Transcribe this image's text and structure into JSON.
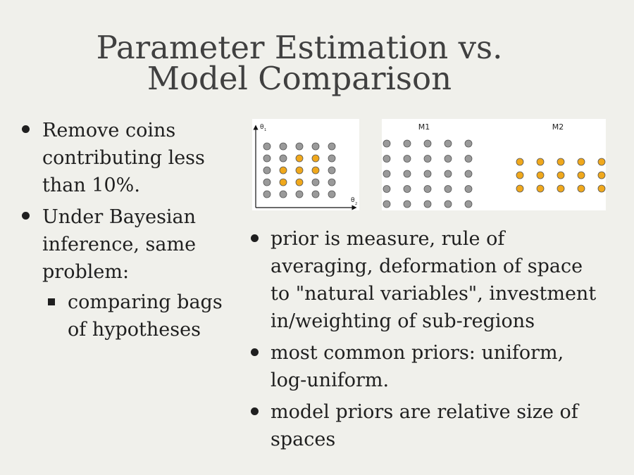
{
  "title": {
    "line1": "Parameter Estimation vs.",
    "line2": "Model Comparison"
  },
  "left_bullets": [
    {
      "text": "Remove coins contributing less than 10%."
    },
    {
      "text": "Under Bayesian inference, same problem:",
      "sub": [
        {
          "text": "comparing bags of hypotheses"
        }
      ]
    }
  ],
  "right_bullets": [
    {
      "text": "prior is measure, rule of averaging, deformation of space to \"natural variables\", investment in/weighting of sub-regions"
    },
    {
      "text": "most common priors: uniform, log-uniform."
    },
    {
      "text": "model priors are relative size of spaces"
    }
  ],
  "figure_a": {
    "y_axis_label": "θ",
    "y_axis_sub": "1",
    "x_axis_label": "θ",
    "x_axis_sub": "2",
    "grid_rows": 5,
    "grid_cols": 5,
    "highlighted": [
      [
        1,
        2
      ],
      [
        1,
        3
      ],
      [
        2,
        1
      ],
      [
        2,
        2
      ],
      [
        2,
        3
      ],
      [
        3,
        1
      ],
      [
        3,
        2
      ]
    ]
  },
  "figure_b": {
    "model1_label": "M1",
    "model2_label": "M2",
    "model1_rows": 5,
    "model1_cols": 5,
    "model2_rows": 3,
    "model2_cols": 5
  },
  "colors": {
    "background": "#f0f0eb",
    "title": "#404040",
    "dot_gray": "#9a9a9a",
    "dot_orange": "#f0a81c"
  }
}
